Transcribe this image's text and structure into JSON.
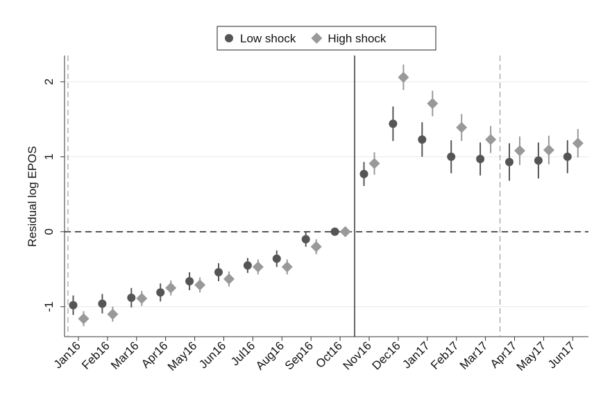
{
  "chart_data": {
    "type": "scatter",
    "y_label": "Residual log EPOS",
    "categories": [
      "Jan16",
      "Feb16",
      "Mar16",
      "Apr16",
      "May16",
      "Jun16",
      "Jul16",
      "Aug16",
      "Sep16",
      "Oct16",
      "Nov16",
      "Dec16",
      "Jan17",
      "Feb17",
      "Mar17",
      "Apr17",
      "May17",
      "Jun17"
    ],
    "series": [
      {
        "name": "Low shock",
        "color": "#555555",
        "marker": "circle",
        "values": [
          -0.98,
          -0.96,
          -0.88,
          -0.81,
          -0.66,
          -0.54,
          -0.45,
          -0.36,
          -0.1,
          0,
          0.77,
          1.44,
          1.23,
          1.0,
          0.97,
          0.93,
          0.95,
          1.0
        ],
        "errors": [
          0.13,
          0.13,
          0.13,
          0.12,
          0.12,
          0.12,
          0.1,
          0.11,
          0.1,
          0,
          0.16,
          0.23,
          0.23,
          0.22,
          0.22,
          0.25,
          0.24,
          0.22
        ]
      },
      {
        "name": "High shock",
        "color": "#999999",
        "marker": "diamond",
        "values": [
          -1.16,
          -1.1,
          -0.89,
          -0.75,
          -0.71,
          -0.63,
          -0.47,
          -0.47,
          -0.2,
          0,
          0.91,
          2.06,
          1.71,
          1.39,
          1.23,
          1.08,
          1.09,
          1.18
        ],
        "errors": [
          0.1,
          0.1,
          0.1,
          0.1,
          0.1,
          0.1,
          0.1,
          0.1,
          0.1,
          0,
          0.15,
          0.17,
          0.17,
          0.18,
          0.18,
          0.19,
          0.19,
          0.19
        ]
      }
    ],
    "ylim": [
      -1.4,
      2.35
    ],
    "yticks": [
      -1,
      0,
      1,
      2
    ],
    "grid": true,
    "legend": "top"
  }
}
